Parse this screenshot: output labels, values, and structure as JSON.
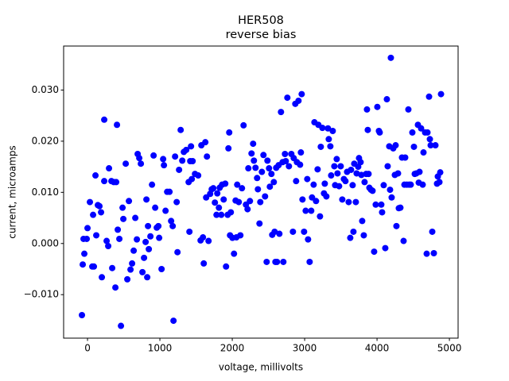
{
  "chart_data": {
    "type": "scatter",
    "title": "HER508",
    "subtitle": "reverse bias",
    "x_label": "voltage, millivolts",
    "y_label": "current, microamps",
    "color": "#0000ff",
    "xlim": [
      -330,
      5120
    ],
    "ylim": [
      -0.0185,
      0.0386
    ],
    "xticks": [
      0,
      1000,
      2000,
      3000,
      4000,
      5000
    ],
    "yticks": [
      {
        "value": -0.01,
        "label": "−0.010"
      },
      {
        "value": 0,
        "label": "0.000"
      },
      {
        "value": 0.01,
        "label": "0.010"
      },
      {
        "value": 0.02,
        "label": "0.020"
      },
      {
        "value": 0.03,
        "label": "0.030"
      }
    ],
    "x": [
      -77,
      -66,
      -55,
      -44,
      -11,
      0,
      33,
      66,
      77,
      88,
      110,
      121,
      143,
      165,
      187,
      198,
      231,
      264,
      286,
      297,
      330,
      341,
      363,
      385,
      396,
      231,
      407,
      418,
      440,
      462,
      484,
      495,
      528,
      550,
      572,
      594,
      616,
      638,
      660,
      682,
      693,
      715,
      737,
      759,
      781,
      803,
      814,
      825,
      836,
      847,
      869,
      891,
      913,
      935,
      957,
      979,
      990,
      1023,
      1045,
      1056,
      1078,
      1100,
      1133,
      1155,
      1177,
      1188,
      1210,
      1232,
      1243,
      1265,
      1287,
      1309,
      1331,
      1364,
      1397,
      1408,
      1419,
      1430,
      1441,
      1452,
      1485,
      1529,
      1562,
      1573,
      1595,
      1606,
      1628,
      1639,
      1650,
      1672,
      1694,
      1716,
      1738,
      1760,
      1782,
      1793,
      1815,
      1826,
      1848,
      1859,
      1881,
      1903,
      1914,
      1936,
      1947,
      1958,
      1969,
      1980,
      2002,
      2024,
      2046,
      2057,
      2068,
      2090,
      2112,
      2134,
      2156,
      2189,
      2211,
      2222,
      2244,
      2266,
      2288,
      2299,
      2321,
      2343,
      2354,
      2376,
      2387,
      2409,
      2431,
      2453,
      2475,
      2486,
      2508,
      2519,
      2541,
      2552,
      2574,
      2585,
      2596,
      2607,
      2618,
      2640,
      2651,
      2673,
      2695,
      2706,
      2728,
      2739,
      2761,
      2783,
      2816,
      2838,
      2849,
      2871,
      2882,
      2893,
      2915,
      2937,
      2948,
      2959,
      2970,
      2992,
      3014,
      3036,
      3047,
      3069,
      3091,
      3102,
      3124,
      3135,
      3157,
      3179,
      3190,
      3212,
      3223,
      3245,
      3267,
      3278,
      3300,
      3322,
      3333,
      3355,
      3366,
      3388,
      3410,
      3421,
      3443,
      3454,
      3476,
      3498,
      3520,
      3542,
      3564,
      3586,
      3608,
      3630,
      3641,
      3663,
      3674,
      3685,
      3707,
      3718,
      3740,
      3751,
      3773,
      3784,
      3795,
      3817,
      3828,
      3850,
      3861,
      3872,
      3883,
      3894,
      3916,
      3938,
      3960,
      3982,
      4004,
      4026,
      4037,
      4059,
      4070,
      4092,
      4114,
      4136,
      4147,
      4169,
      4180,
      4191,
      4202,
      4224,
      4246,
      4257,
      4268,
      4290,
      4301,
      4323,
      4345,
      4367,
      4378,
      4389,
      4411,
      4433,
      4444,
      4466,
      4488,
      4510,
      4521,
      4543,
      4565,
      4576,
      4587,
      4609,
      4631,
      4642,
      4664,
      4686,
      4697,
      4719,
      4730,
      4741,
      4763,
      4785,
      4807,
      4829,
      4840,
      4862,
      4873,
      4884
    ],
    "values": [
      -0.014,
      -0.0041,
      0.0009,
      -0.002,
      0.0009,
      0.003,
      0.0081,
      -0.0045,
      0.0056,
      -0.0045,
      0.0133,
      0.0016,
      0.0075,
      0.0073,
      0.0061,
      -0.0066,
      0.0122,
      0.0005,
      -0.0005,
      0.0147,
      0.0122,
      -0.0048,
      0.012,
      -0.0086,
      0.012,
      0.0242,
      0.0232,
      0.0027,
      0.0009,
      -0.0161,
      0.007,
      0.0048,
      0.0156,
      -0.007,
      0.0083,
      -0.0051,
      -0.0039,
      -0.0014,
      0.005,
      0.0008,
      0.0175,
      0.0167,
      0.0156,
      -0.0056,
      -0.0028,
      0.0003,
      0.0086,
      -0.0066,
      0.0034,
      -0.0011,
      0.0014,
      0.0115,
      0.0172,
      0.007,
      0.0031,
      0.0034,
      0.0011,
      -0.005,
      0.0165,
      0.0153,
      0.0064,
      0.0101,
      0.0101,
      0.0044,
      0.0034,
      -0.0151,
      0.017,
      0.0081,
      -0.0017,
      0.0144,
      0.0222,
      0.0162,
      0.0179,
      0.0183,
      0.012,
      0.0023,
      0.0161,
      0.019,
      0.0126,
      0.0161,
      0.0136,
      0.0133,
      0.0006,
      0.0192,
      0.0012,
      -0.0039,
      0.0198,
      0.009,
      0.017,
      0.0005,
      0.0097,
      0.0106,
      0.0108,
      0.008,
      0.0056,
      0.0098,
      0.007,
      0.0109,
      0.0056,
      0.0115,
      0.0086,
      0.0117,
      -0.0045,
      0.0056,
      0.0186,
      0.0217,
      0.0016,
      0.0061,
      0.0011,
      -0.002,
      0.0084,
      0.0012,
      0.0115,
      0.0081,
      0.0016,
      0.0108,
      0.0231,
      0.0076,
      0.0067,
      0.0147,
      0.0083,
      0.0176,
      0.0195,
      0.0162,
      0.0148,
      0.0128,
      0.0106,
      0.0039,
      0.0081,
      0.014,
      0.0173,
      0.0092,
      -0.0036,
      0.0162,
      0.0147,
      0.0111,
      0.0136,
      0.0017,
      0.012,
      0.0023,
      -0.0036,
      0.0148,
      -0.0036,
      0.0153,
      0.0019,
      0.0257,
      0.0159,
      -0.0036,
      0.0175,
      0.0161,
      0.0285,
      0.0151,
      0.0175,
      0.0023,
      0.0167,
      0.0273,
      0.0122,
      0.0159,
      0.0279,
      0.0154,
      0.0178,
      0.0292,
      0.0086,
      0.0023,
      0.0064,
      0.0126,
      0.0008,
      -0.0036,
      0.0064,
      0.009,
      0.0115,
      0.0237,
      0.0083,
      0.0145,
      0.0232,
      0.0053,
      0.0189,
      0.0226,
      0.0098,
      0.0117,
      0.0092,
      0.0225,
      0.0204,
      0.019,
      0.0133,
      0.022,
      0.0151,
      0.0114,
      0.0165,
      0.0137,
      0.0112,
      0.0151,
      0.0086,
      0.0126,
      0.0122,
      0.014,
      0.0081,
      0.0011,
      0.0144,
      0.0114,
      0.0023,
      0.0156,
      0.0081,
      0.0137,
      0.015,
      0.0167,
      0.0159,
      0.0134,
      0.0044,
      0.0016,
      0.012,
      0.0136,
      0.0262,
      0.0222,
      0.0136,
      0.0109,
      0.0105,
      0.0103,
      -0.0016,
      0.0076,
      0.0267,
      0.022,
      0.0217,
      0.0076,
      0.0061,
      0.0114,
      -0.0009,
      0.0282,
      0.0151,
      0.019,
      0.0105,
      0.0363,
      0.009,
      0.0186,
      0.0134,
      0.0192,
      0.0034,
      0.0137,
      0.0069,
      0.007,
      0.0168,
      0.0005,
      0.0115,
      0.0168,
      0.0115,
      0.0262,
      0.0115,
      0.0115,
      0.0217,
      0.0189,
      0.0136,
      0.0137,
      0.0232,
      0.0119,
      0.014,
      0.0225,
      0.0115,
      0.0178,
      0.0217,
      -0.002,
      0.0217,
      0.0287,
      0.0204,
      0.0192,
      0.0023,
      -0.0019,
      0.0192,
      0.0117,
      0.0131,
      0.012,
      0.0139,
      0.0292
    ]
  }
}
